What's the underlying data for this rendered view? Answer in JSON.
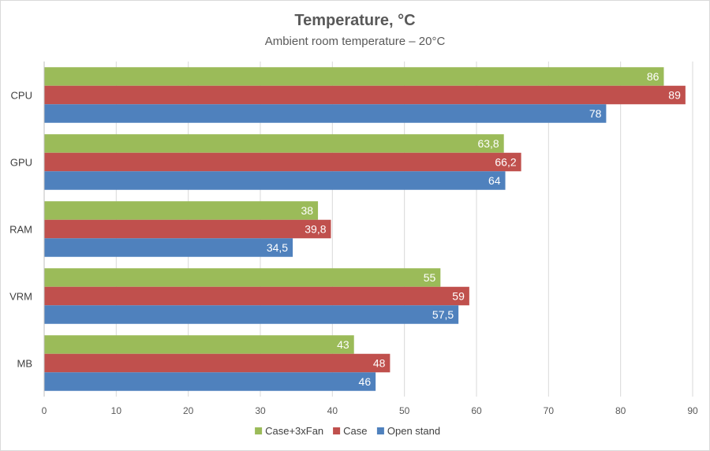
{
  "chart_data": {
    "type": "bar",
    "orientation": "horizontal",
    "title": "Temperature, °C",
    "subtitle": "Ambient room temperature – 20°C",
    "categories": [
      "CPU",
      "GPU",
      "RAM",
      "VRM",
      "MB"
    ],
    "series": [
      {
        "name": "Case+3xFan",
        "color": "#9bbb59",
        "values": [
          86,
          63.8,
          38,
          55,
          43
        ],
        "labels": [
          "86",
          "63,8",
          "38",
          "55",
          "43"
        ]
      },
      {
        "name": "Case",
        "color": "#c0504d",
        "values": [
          89,
          66.2,
          39.8,
          59,
          48
        ],
        "labels": [
          "89",
          "66,2",
          "39,8",
          "59",
          "48"
        ]
      },
      {
        "name": "Open stand",
        "color": "#4f81bd",
        "values": [
          78,
          64,
          34.5,
          57.5,
          46
        ],
        "labels": [
          "78",
          "64",
          "34,5",
          "57,5",
          "46"
        ]
      }
    ],
    "xlim": [
      0,
      90
    ],
    "xticks": [
      0,
      10,
      20,
      30,
      40,
      50,
      60,
      70,
      80,
      90
    ],
    "grid": true,
    "legend": "bottom"
  }
}
